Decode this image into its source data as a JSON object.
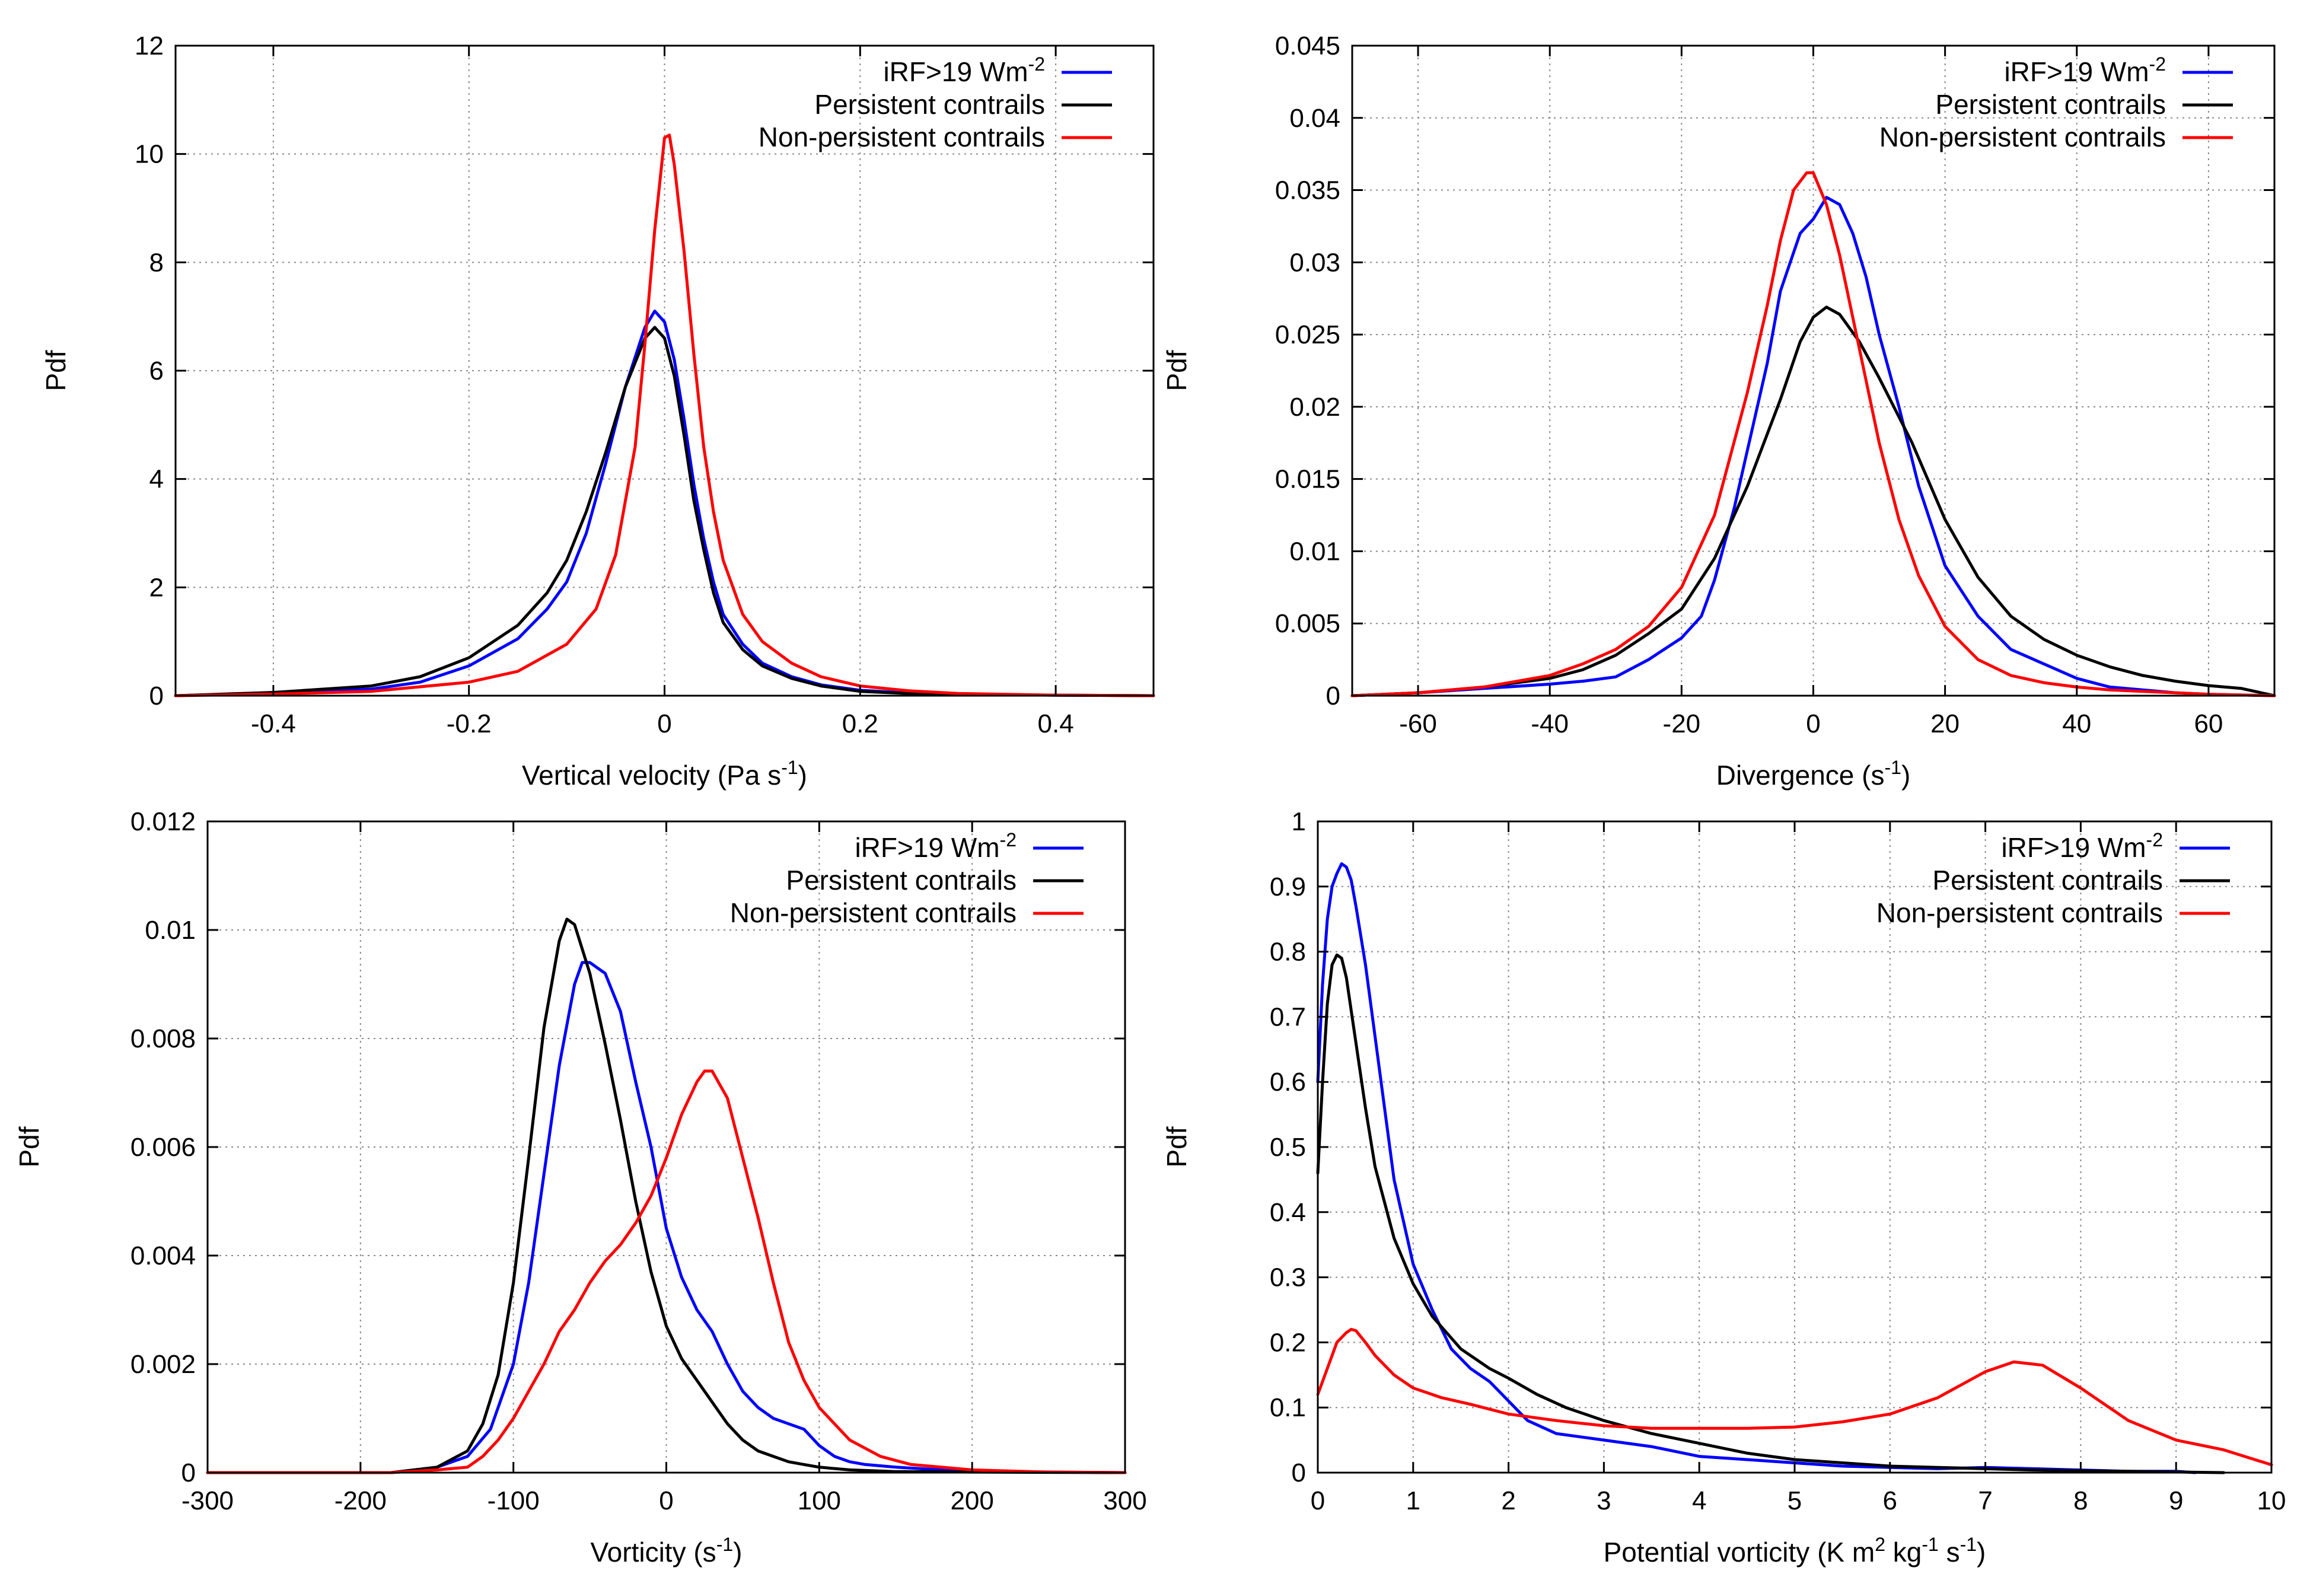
{
  "colors": {
    "blue": "#0000ff",
    "black": "#000000",
    "red": "#ff0000"
  },
  "chart_data": [
    {
      "type": "line",
      "title": "",
      "xlabel": {
        "base": "Vertical velocity (Pa s",
        "sup": "-1",
        "after": ")"
      },
      "ylabel": "Pdf",
      "xlim": [
        -0.5,
        0.5
      ],
      "ylim": [
        0,
        12
      ],
      "xticks": [
        -0.4,
        -0.2,
        0,
        0.2,
        0.4
      ],
      "xtick_labels": [
        "-0.4",
        "-0.2",
        "0",
        "0.2",
        "0.4"
      ],
      "yticks": [
        0,
        2,
        4,
        6,
        8,
        10,
        12
      ],
      "ytick_labels": [
        "0",
        "2",
        "4",
        "6",
        "8",
        "10",
        "12"
      ],
      "grid": true,
      "legend_position": "top-right",
      "series": [
        {
          "name": "iRF>19 Wm",
          "name_sup": "-2",
          "color": "blue",
          "x": [
            -0.5,
            -0.4,
            -0.3,
            -0.25,
            -0.2,
            -0.15,
            -0.12,
            -0.1,
            -0.08,
            -0.06,
            -0.04,
            -0.02,
            -0.01,
            0,
            0.01,
            0.02,
            0.03,
            0.04,
            0.05,
            0.06,
            0.08,
            0.1,
            0.13,
            0.16,
            0.2,
            0.25,
            0.3,
            0.4,
            0.5
          ],
          "y": [
            0,
            0.05,
            0.12,
            0.25,
            0.55,
            1.05,
            1.6,
            2.1,
            3.0,
            4.3,
            5.7,
            6.8,
            7.1,
            6.9,
            6.2,
            5.1,
            3.9,
            2.9,
            2.1,
            1.5,
            0.95,
            0.6,
            0.35,
            0.2,
            0.1,
            0.05,
            0.02,
            0.01,
            0
          ]
        },
        {
          "name": "Persistent contrails",
          "color": "black",
          "x": [
            -0.5,
            -0.4,
            -0.3,
            -0.25,
            -0.2,
            -0.15,
            -0.12,
            -0.1,
            -0.08,
            -0.06,
            -0.04,
            -0.02,
            -0.01,
            0,
            0.01,
            0.02,
            0.03,
            0.04,
            0.05,
            0.06,
            0.08,
            0.1,
            0.13,
            0.16,
            0.2,
            0.25,
            0.3,
            0.4,
            0.5
          ],
          "y": [
            0,
            0.06,
            0.18,
            0.35,
            0.7,
            1.3,
            1.9,
            2.5,
            3.4,
            4.5,
            5.7,
            6.6,
            6.8,
            6.6,
            5.9,
            4.8,
            3.6,
            2.7,
            1.9,
            1.35,
            0.85,
            0.55,
            0.32,
            0.18,
            0.08,
            0.04,
            0.02,
            0.01,
            0
          ]
        },
        {
          "name": "Non-persistent contrails",
          "color": "red",
          "x": [
            -0.5,
            -0.4,
            -0.3,
            -0.2,
            -0.15,
            -0.1,
            -0.07,
            -0.05,
            -0.03,
            -0.02,
            -0.01,
            0,
            0.005,
            0.01,
            0.02,
            0.03,
            0.04,
            0.05,
            0.06,
            0.08,
            0.1,
            0.13,
            0.16,
            0.2,
            0.25,
            0.3,
            0.4,
            0.5
          ],
          "y": [
            0,
            0.03,
            0.08,
            0.25,
            0.45,
            0.95,
            1.6,
            2.6,
            4.6,
            6.5,
            8.6,
            10.3,
            10.35,
            9.8,
            8.2,
            6.3,
            4.6,
            3.4,
            2.5,
            1.5,
            1.0,
            0.6,
            0.35,
            0.18,
            0.09,
            0.04,
            0.01,
            0
          ]
        }
      ]
    },
    {
      "type": "line",
      "title": "",
      "xlabel": {
        "base": "Divergence (s",
        "sup": "-1",
        "after": ")"
      },
      "ylabel": "Pdf",
      "xlim": [
        -70,
        70
      ],
      "ylim": [
        0,
        0.045
      ],
      "xticks": [
        -60,
        -40,
        -20,
        0,
        20,
        40,
        60
      ],
      "xtick_labels": [
        "-60",
        "-40",
        "-20",
        "0",
        "20",
        "40",
        "60"
      ],
      "yticks": [
        0,
        0.005,
        0.01,
        0.015,
        0.02,
        0.025,
        0.03,
        0.035,
        0.04,
        0.045
      ],
      "ytick_labels": [
        "0",
        "0.005",
        "0.01",
        "0.015",
        "0.02",
        "0.025",
        "0.03",
        "0.035",
        "0.04",
        "0.045"
      ],
      "grid": true,
      "legend_position": "top-right",
      "series": [
        {
          "name": "iRF>19 Wm",
          "name_sup": "-2",
          "color": "blue",
          "x": [
            -70,
            -60,
            -50,
            -40,
            -35,
            -30,
            -25,
            -20,
            -17,
            -15,
            -12,
            -10,
            -7,
            -5,
            -2,
            0,
            2,
            4,
            6,
            8,
            10,
            13,
            16,
            20,
            25,
            30,
            35,
            40,
            45,
            50,
            55,
            60,
            70
          ],
          "y": [
            0,
            0.0002,
            0.0005,
            0.0008,
            0.001,
            0.0013,
            0.0025,
            0.004,
            0.0055,
            0.008,
            0.013,
            0.017,
            0.023,
            0.028,
            0.032,
            0.033,
            0.0345,
            0.034,
            0.032,
            0.029,
            0.025,
            0.02,
            0.0145,
            0.009,
            0.0055,
            0.0032,
            0.0022,
            0.0012,
            0.0006,
            0.0004,
            0.0002,
            0.0001,
            0
          ]
        },
        {
          "name": "Persistent contrails",
          "color": "black",
          "x": [
            -70,
            -60,
            -50,
            -40,
            -35,
            -30,
            -25,
            -20,
            -15,
            -10,
            -5,
            -2,
            0,
            2,
            4,
            7,
            10,
            15,
            20,
            25,
            30,
            35,
            40,
            45,
            50,
            55,
            60,
            65,
            70
          ],
          "y": [
            0,
            0.0002,
            0.0006,
            0.0012,
            0.0018,
            0.0028,
            0.0043,
            0.006,
            0.0095,
            0.0145,
            0.0205,
            0.0245,
            0.0262,
            0.0269,
            0.0264,
            0.0245,
            0.022,
            0.0175,
            0.0122,
            0.0082,
            0.0055,
            0.0039,
            0.0028,
            0.002,
            0.0014,
            0.001,
            0.0007,
            0.0005,
            0
          ]
        },
        {
          "name": "Non-persistent contrails",
          "color": "red",
          "x": [
            -70,
            -60,
            -50,
            -40,
            -35,
            -30,
            -25,
            -20,
            -15,
            -10,
            -7,
            -5,
            -3,
            -1,
            0,
            2,
            4,
            7,
            10,
            13,
            16,
            20,
            25,
            30,
            35,
            40,
            45,
            50,
            55,
            60,
            70
          ],
          "y": [
            0,
            0.0002,
            0.0006,
            0.0014,
            0.0022,
            0.0032,
            0.0048,
            0.0075,
            0.0125,
            0.021,
            0.027,
            0.0315,
            0.035,
            0.0362,
            0.0362,
            0.034,
            0.0305,
            0.024,
            0.0175,
            0.0122,
            0.0083,
            0.0048,
            0.0025,
            0.0014,
            0.0009,
            0.0006,
            0.0004,
            0.0003,
            0.0002,
            0.0001,
            0
          ]
        }
      ]
    },
    {
      "type": "line",
      "title": "",
      "xlabel": {
        "base": "Vorticity (s",
        "sup": "-1",
        "after": ")"
      },
      "ylabel": "Pdf",
      "xlim": [
        -300,
        300
      ],
      "ylim": [
        0,
        0.012
      ],
      "xticks": [
        -300,
        -200,
        -100,
        0,
        100,
        200,
        300
      ],
      "xtick_labels": [
        "-300",
        "-200",
        "-100",
        "0",
        "100",
        "200",
        "300"
      ],
      "yticks": [
        0,
        0.002,
        0.004,
        0.006,
        0.008,
        0.01,
        0.012
      ],
      "ytick_labels": [
        "0",
        "0.002",
        "0.004",
        "0.006",
        "0.008",
        "0.01",
        "0.012"
      ],
      "grid": true,
      "legend_position": "top-right",
      "series": [
        {
          "name": "iRF>19 Wm",
          "name_sup": "-2",
          "color": "blue",
          "x": [
            -300,
            -180,
            -150,
            -130,
            -115,
            -100,
            -90,
            -80,
            -70,
            -60,
            -55,
            -50,
            -40,
            -30,
            -20,
            -10,
            0,
            10,
            20,
            30,
            40,
            50,
            60,
            70,
            80,
            90,
            100,
            110,
            120,
            130,
            150,
            180,
            220,
            300
          ],
          "y": [
            0,
            0,
            0.0001,
            0.0003,
            0.0008,
            0.002,
            0.0035,
            0.0055,
            0.0075,
            0.009,
            0.0094,
            0.0094,
            0.0092,
            0.0085,
            0.0072,
            0.006,
            0.0045,
            0.0036,
            0.003,
            0.0026,
            0.002,
            0.0015,
            0.0012,
            0.001,
            0.0009,
            0.0008,
            0.0005,
            0.0003,
            0.0002,
            0.00015,
            0.0001,
            5e-05,
            2e-05,
            0
          ]
        },
        {
          "name": "Persistent contrails",
          "color": "black",
          "x": [
            -300,
            -180,
            -150,
            -130,
            -120,
            -110,
            -100,
            -90,
            -80,
            -70,
            -65,
            -60,
            -50,
            -40,
            -30,
            -20,
            -10,
            0,
            10,
            20,
            30,
            40,
            50,
            60,
            70,
            80,
            90,
            100,
            120,
            150,
            200,
            300
          ],
          "y": [
            0,
            0,
            0.0001,
            0.0004,
            0.0009,
            0.0018,
            0.0035,
            0.0058,
            0.0082,
            0.0098,
            0.0102,
            0.0101,
            0.0092,
            0.0079,
            0.0065,
            0.005,
            0.0037,
            0.0027,
            0.0021,
            0.0017,
            0.0013,
            0.0009,
            0.0006,
            0.0004,
            0.0003,
            0.0002,
            0.00015,
            0.0001,
            5e-05,
            2e-05,
            1e-05,
            0
          ]
        },
        {
          "name": "Non-persistent contrails",
          "color": "red",
          "x": [
            -300,
            -180,
            -150,
            -130,
            -120,
            -110,
            -100,
            -90,
            -80,
            -70,
            -60,
            -50,
            -40,
            -30,
            -20,
            -10,
            0,
            10,
            20,
            25,
            30,
            40,
            50,
            60,
            70,
            80,
            90,
            100,
            110,
            120,
            140,
            160,
            200,
            250,
            300
          ],
          "y": [
            0,
            0,
            5e-05,
            0.0001,
            0.0003,
            0.0006,
            0.001,
            0.0015,
            0.002,
            0.0026,
            0.003,
            0.0035,
            0.0039,
            0.0042,
            0.0046,
            0.0051,
            0.0058,
            0.0066,
            0.0072,
            0.0074,
            0.0074,
            0.0069,
            0.0058,
            0.0047,
            0.0035,
            0.0024,
            0.0017,
            0.0012,
            0.0009,
            0.0006,
            0.0003,
            0.00015,
            5e-05,
            1e-05,
            0
          ]
        }
      ]
    },
    {
      "type": "line",
      "title": "",
      "xlabel": {
        "base": "Potential vorticity (K m",
        "sup": "2",
        "mid": " kg",
        "sup2": "-1",
        "mid2": " s",
        "sup3": "-1",
        "after": ")"
      },
      "ylabel": "Pdf",
      "xlim": [
        0,
        10
      ],
      "ylim": [
        0,
        1
      ],
      "xticks": [
        0,
        1,
        2,
        3,
        4,
        5,
        6,
        7,
        8,
        9,
        10
      ],
      "xtick_labels": [
        "0",
        "1",
        "2",
        "3",
        "4",
        "5",
        "6",
        "7",
        "8",
        "9",
        "10"
      ],
      "yticks": [
        0,
        0.1,
        0.2,
        0.3,
        0.4,
        0.5,
        0.6,
        0.7,
        0.8,
        0.9,
        1
      ],
      "ytick_labels": [
        "0",
        "0.1",
        "0.2",
        "0.3",
        "0.4",
        "0.5",
        "0.6",
        "0.7",
        "0.8",
        "0.9",
        "1"
      ],
      "grid": true,
      "legend_position": "top-right",
      "series": [
        {
          "name": "iRF>19 Wm",
          "name_sup": "-2",
          "color": "blue",
          "x": [
            0,
            0.05,
            0.1,
            0.15,
            0.2,
            0.25,
            0.3,
            0.35,
            0.4,
            0.5,
            0.6,
            0.8,
            1.0,
            1.2,
            1.4,
            1.6,
            1.8,
            2.0,
            2.2,
            2.5,
            3,
            3.5,
            4,
            4.5,
            5,
            5.5,
            6,
            6.5,
            7,
            7.5,
            8,
            8.5,
            9,
            9.2
          ],
          "y": [
            0.6,
            0.75,
            0.85,
            0.9,
            0.92,
            0.935,
            0.93,
            0.91,
            0.87,
            0.78,
            0.67,
            0.45,
            0.32,
            0.25,
            0.19,
            0.16,
            0.14,
            0.11,
            0.08,
            0.06,
            0.05,
            0.04,
            0.025,
            0.02,
            0.015,
            0.01,
            0.008,
            0.006,
            0.008,
            0.006,
            0.004,
            0.002,
            0.002,
            0
          ]
        },
        {
          "name": "Persistent contrails",
          "color": "black",
          "x": [
            0,
            0.05,
            0.1,
            0.15,
            0.2,
            0.25,
            0.3,
            0.4,
            0.5,
            0.6,
            0.8,
            1.0,
            1.2,
            1.5,
            1.8,
            2.0,
            2.3,
            2.6,
            3,
            3.5,
            4,
            4.5,
            5,
            5.5,
            6,
            6.5,
            7,
            7.5,
            8,
            8.5,
            9,
            9.5
          ],
          "y": [
            0.46,
            0.6,
            0.72,
            0.78,
            0.795,
            0.79,
            0.76,
            0.66,
            0.56,
            0.47,
            0.36,
            0.29,
            0.24,
            0.19,
            0.16,
            0.145,
            0.12,
            0.1,
            0.08,
            0.06,
            0.045,
            0.03,
            0.02,
            0.015,
            0.01,
            0.008,
            0.006,
            0.004,
            0.003,
            0.002,
            0.001,
            0
          ]
        },
        {
          "name": "Non-persistent contrails",
          "color": "red",
          "x": [
            0,
            0.1,
            0.2,
            0.3,
            0.35,
            0.4,
            0.5,
            0.6,
            0.8,
            1.0,
            1.3,
            1.6,
            2,
            2.5,
            3,
            3.5,
            4,
            4.5,
            5,
            5.5,
            6,
            6.5,
            7,
            7.3,
            7.6,
            8,
            8.5,
            9,
            9.5,
            10
          ],
          "y": [
            0.12,
            0.16,
            0.2,
            0.215,
            0.22,
            0.218,
            0.2,
            0.18,
            0.15,
            0.13,
            0.115,
            0.105,
            0.09,
            0.08,
            0.072,
            0.068,
            0.068,
            0.068,
            0.07,
            0.078,
            0.09,
            0.115,
            0.155,
            0.17,
            0.165,
            0.13,
            0.08,
            0.05,
            0.035,
            0.012
          ]
        }
      ]
    }
  ]
}
